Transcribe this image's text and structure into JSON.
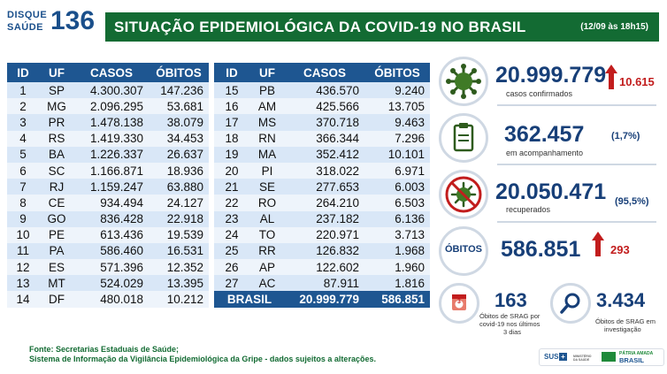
{
  "logo": {
    "line1": "DISQUE",
    "line2": "SAÚDE",
    "number": "136"
  },
  "header": {
    "title": "SITUAÇÃO EPIDEMIOLÓGICA DA COVID-19 NO BRASIL",
    "date": "(12/09 às 18h15)"
  },
  "table": {
    "columns": [
      "ID",
      "UF",
      "CASOS",
      "ÓBITOS"
    ],
    "left_rows": [
      [
        "1",
        "SP",
        "4.300.307",
        "147.236"
      ],
      [
        "2",
        "MG",
        "2.096.295",
        "53.681"
      ],
      [
        "3",
        "PR",
        "1.478.138",
        "38.079"
      ],
      [
        "4",
        "RS",
        "1.419.330",
        "34.453"
      ],
      [
        "5",
        "BA",
        "1.226.337",
        "26.637"
      ],
      [
        "6",
        "SC",
        "1.166.871",
        "18.936"
      ],
      [
        "7",
        "RJ",
        "1.159.247",
        "63.880"
      ],
      [
        "8",
        "CE",
        "934.494",
        "24.127"
      ],
      [
        "9",
        "GO",
        "836.428",
        "22.918"
      ],
      [
        "10",
        "PE",
        "613.436",
        "19.539"
      ],
      [
        "11",
        "PA",
        "586.460",
        "16.531"
      ],
      [
        "12",
        "ES",
        "571.396",
        "12.352"
      ],
      [
        "13",
        "MT",
        "524.029",
        "13.395"
      ],
      [
        "14",
        "DF",
        "480.018",
        "10.212"
      ]
    ],
    "right_rows": [
      [
        "15",
        "PB",
        "436.570",
        "9.240"
      ],
      [
        "16",
        "AM",
        "425.566",
        "13.705"
      ],
      [
        "17",
        "MS",
        "370.718",
        "9.463"
      ],
      [
        "18",
        "RN",
        "366.344",
        "7.296"
      ],
      [
        "19",
        "MA",
        "352.412",
        "10.101"
      ],
      [
        "20",
        "PI",
        "318.022",
        "6.971"
      ],
      [
        "21",
        "SE",
        "277.653",
        "6.003"
      ],
      [
        "22",
        "RO",
        "264.210",
        "6.503"
      ],
      [
        "23",
        "AL",
        "237.182",
        "6.136"
      ],
      [
        "24",
        "TO",
        "220.971",
        "3.713"
      ],
      [
        "25",
        "RR",
        "126.832",
        "1.968"
      ],
      [
        "26",
        "AP",
        "122.602",
        "1.960"
      ],
      [
        "27",
        "AC",
        "87.911",
        "1.816"
      ]
    ],
    "total": {
      "label": "BRASIL",
      "cases": "20.999.779",
      "deaths": "586.851"
    }
  },
  "stats": {
    "confirmed": {
      "value": "20.999.779",
      "label": "casos confirmados",
      "increase": "10.615"
    },
    "monitoring": {
      "value": "362.457",
      "pct": "(1,7%)",
      "label": "em acompanhamento"
    },
    "recovered": {
      "value": "20.050.471",
      "pct": "(95,5%)",
      "label": "recuperados"
    },
    "deaths": {
      "badge": "ÓBITOS",
      "value": "586.851",
      "increase": "293"
    },
    "srag_recent": {
      "value": "163",
      "label_l1": "Óbitos de SRAG por",
      "label_l2": "covid-19 nos últimos",
      "label_l3": "3 dias",
      "badge": "3"
    },
    "srag_investigation": {
      "value": "3.434",
      "label_l1": "Óbitos de SRAG em",
      "label_l2": "investigação"
    }
  },
  "footer": {
    "line1": "Fonte: Secretarias Estaduais de Saúde;",
    "line2": "Sistema de Informação da Vigilância Epidemiológica da Gripe - dados sujeitos a alterações."
  },
  "brands": {
    "sus": "SUS",
    "ministry": "MINISTÉRIO DA SAÚDE",
    "gov_l1": "PÁTRIA AMADA",
    "gov_l2": "BRASIL"
  },
  "colors": {
    "banner": "#136b33",
    "header": "#1e5691",
    "value": "#173f78",
    "up": "#c21d1d"
  },
  "icons": [
    "virus-icon",
    "clipboard-icon",
    "no-virus-icon",
    "calendar-icon",
    "magnifier-icon",
    "up-arrow-icon"
  ]
}
